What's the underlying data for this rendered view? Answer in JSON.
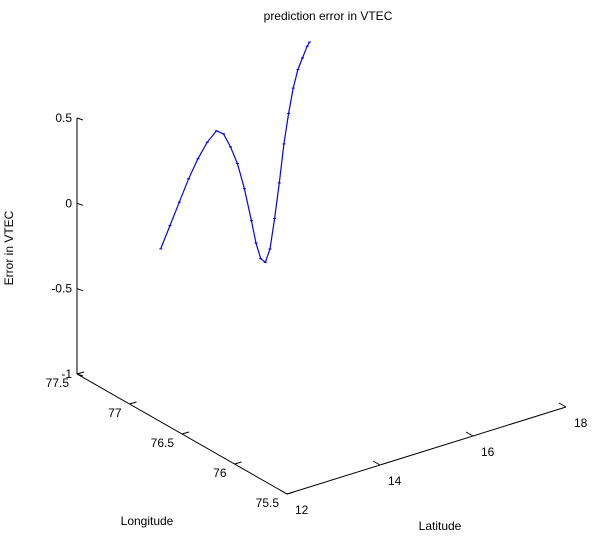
{
  "chart_data": {
    "type": "line3d",
    "title": "prediction error in VTEC",
    "xlabel": "Latitude",
    "ylabel": "Longitude",
    "zlabel": "Error in VTEC",
    "xlim": [
      12,
      18
    ],
    "ylim": [
      75.5,
      77.5
    ],
    "zlim": [
      -1,
      0.5
    ],
    "x_ticks": [
      "12",
      "14",
      "16",
      "18"
    ],
    "y_ticks": [
      "75.5",
      "76",
      "76.5",
      "77",
      "77.5"
    ],
    "z_ticks": [
      "-1",
      "-0.5",
      "0",
      "0.5"
    ],
    "grid": false,
    "line_color": "#0000ff",
    "series": [
      {
        "points": [
          [
            13.8,
            77.5,
            -0.42
          ],
          [
            14.0,
            77.5,
            -0.3
          ],
          [
            14.2,
            77.5,
            -0.18
          ],
          [
            14.4,
            77.5,
            -0.06
          ],
          [
            14.6,
            77.5,
            0.04
          ],
          [
            14.8,
            77.5,
            0.12
          ],
          [
            15.0,
            77.5,
            0.17
          ],
          [
            15.15,
            77.5,
            0.14
          ],
          [
            15.3,
            77.5,
            0.05
          ],
          [
            15.45,
            77.5,
            -0.06
          ],
          [
            15.6,
            77.5,
            -0.22
          ],
          [
            15.75,
            77.5,
            -0.42
          ],
          [
            15.85,
            77.5,
            -0.56
          ],
          [
            15.95,
            77.5,
            -0.66
          ],
          [
            16.05,
            77.5,
            -0.69
          ],
          [
            16.15,
            77.5,
            -0.62
          ],
          [
            16.25,
            77.5,
            -0.45
          ],
          [
            16.35,
            77.5,
            -0.25
          ],
          [
            16.45,
            77.5,
            -0.03
          ],
          [
            16.55,
            77.5,
            0.14
          ],
          [
            16.65,
            77.5,
            0.28
          ],
          [
            16.75,
            77.5,
            0.38
          ],
          [
            16.85,
            77.5,
            0.44
          ],
          [
            16.95,
            77.5,
            0.5
          ],
          [
            17.0,
            77.5,
            0.52
          ]
        ]
      }
    ]
  }
}
